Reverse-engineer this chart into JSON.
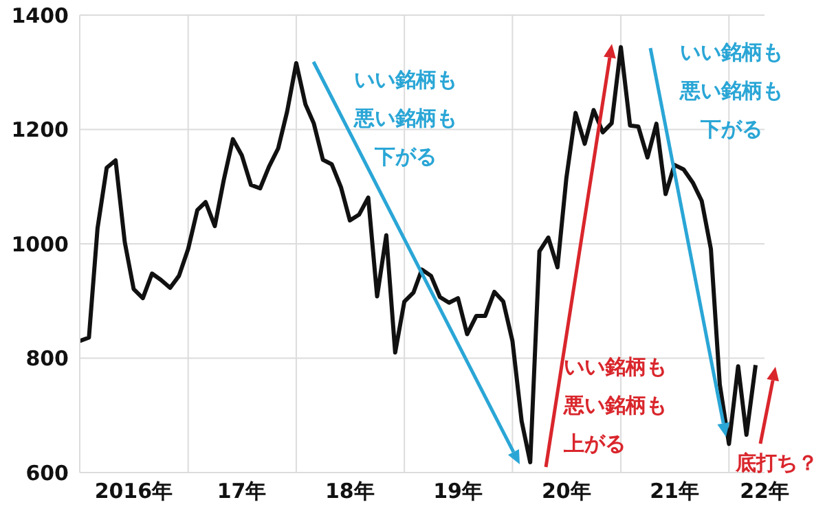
{
  "chart_data": {
    "type": "line",
    "color": "#111111",
    "line_style": "solid",
    "marker": "none",
    "x": [
      "2016-01",
      "2016-02",
      "2016-03",
      "2016-04",
      "2016-05",
      "2016-06",
      "2016-07",
      "2016-08",
      "2016-09",
      "2016-10",
      "2016-11",
      "2016-12",
      "2017-01",
      "2017-02",
      "2017-03",
      "2017-04",
      "2017-05",
      "2017-06",
      "2017-07",
      "2017-08",
      "2017-09",
      "2017-10",
      "2017-11",
      "2017-12",
      "2018-01",
      "2018-02",
      "2018-03",
      "2018-04",
      "2018-05",
      "2018-06",
      "2018-07",
      "2018-08",
      "2018-09",
      "2018-10",
      "2018-11",
      "2018-12",
      "2019-01",
      "2019-02",
      "2019-03",
      "2019-04",
      "2019-05",
      "2019-06",
      "2019-07",
      "2019-08",
      "2019-09",
      "2019-10",
      "2019-11",
      "2019-12",
      "2020-01",
      "2020-02",
      "2020-03",
      "2020-04",
      "2020-05",
      "2020-06",
      "2020-07",
      "2020-08",
      "2020-09",
      "2020-10",
      "2020-11",
      "2020-12",
      "2021-01",
      "2021-02",
      "2021-03",
      "2021-04",
      "2021-05",
      "2021-06",
      "2021-07",
      "2021-08",
      "2021-09",
      "2021-10",
      "2021-11",
      "2021-12",
      "2022-01",
      "2022-02",
      "2022-03",
      "2022-04"
    ],
    "values": [
      830,
      836,
      1027,
      1133,
      1146,
      1003,
      921,
      905,
      948,
      937,
      923,
      944,
      991,
      1059,
      1073,
      1031,
      1111,
      1183,
      1155,
      1103,
      1097,
      1135,
      1167,
      1231,
      1316,
      1244,
      1211,
      1147,
      1139,
      1099,
      1041,
      1051,
      1081,
      908,
      1015,
      810,
      899,
      915,
      955,
      944,
      907,
      897,
      905,
      842,
      874,
      874,
      916,
      899,
      830,
      690,
      618,
      987,
      1011,
      959,
      1115,
      1229,
      1175,
      1234,
      1195,
      1211,
      1344,
      1207,
      1205,
      1151,
      1210,
      1087,
      1138,
      1130,
      1107,
      1075,
      991,
      754,
      650,
      786,
      666,
      788
    ],
    "xlim": [
      "2016-01",
      "2022-05"
    ],
    "xticks": [
      {
        "value": "2016-07",
        "label": "2016年"
      },
      {
        "value": "2017-01",
        "label": null
      },
      {
        "value": "2017-07",
        "label": "17年"
      },
      {
        "value": "2018-01",
        "label": null
      },
      {
        "value": "2018-07",
        "label": "18年"
      },
      {
        "value": "2019-01",
        "label": null
      },
      {
        "value": "2019-07",
        "label": "19年"
      },
      {
        "value": "2020-01",
        "label": null
      },
      {
        "value": "2020-07",
        "label": "20年"
      },
      {
        "value": "2021-01",
        "label": null
      },
      {
        "value": "2021-07",
        "label": "21年"
      },
      {
        "value": "2022-01",
        "label": null
      },
      {
        "value": "2022-05",
        "label": "22年"
      }
    ],
    "ylim": [
      600,
      1400
    ],
    "yticks": [
      600,
      800,
      1000,
      1200,
      1400
    ],
    "grid": true,
    "legend": false,
    "annotations": [
      "いい銘柄も悪い銘柄も下がる",
      "いい銘柄も悪い銘柄も上がる",
      "いい銘柄も悪い銘柄も下がる",
      "底打ち？"
    ]
  }
}
